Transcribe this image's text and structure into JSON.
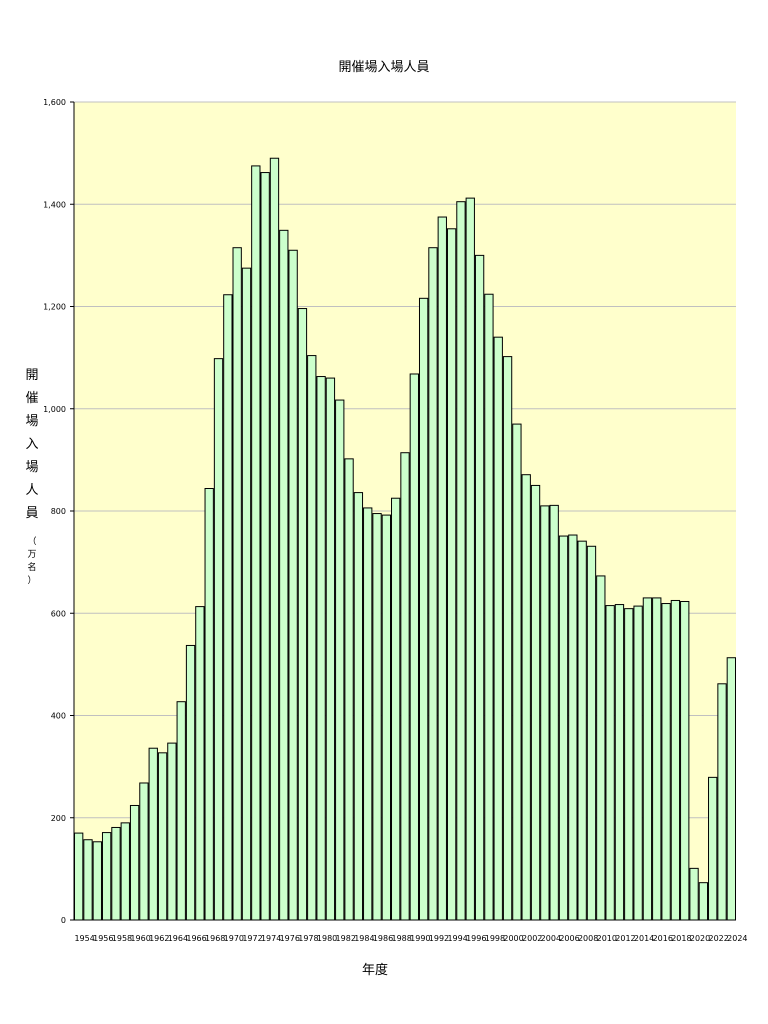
{
  "chart_data": {
    "type": "bar",
    "title": "開催場入場人員",
    "xlabel": "年度",
    "ylabel_main": "開催場入場人員",
    "ylabel_unit": "（万名）",
    "ylim": [
      0,
      1600
    ],
    "yticks": [
      0,
      200,
      400,
      600,
      800,
      1000,
      1200,
      1400,
      1600
    ],
    "ytick_labels": [
      "0",
      "200",
      "400",
      "600",
      "800",
      "1,000",
      "1,200",
      "1,400",
      "1,600"
    ],
    "grid": true,
    "legend": "none",
    "colors": {
      "plot_bg": "#ffffcc",
      "bar_fill": "#ccffcc",
      "bar_stroke": "#000000",
      "grid": "#c0c0c0"
    },
    "categories": [
      1954,
      1955,
      1956,
      1957,
      1958,
      1959,
      1960,
      1961,
      1962,
      1963,
      1964,
      1965,
      1966,
      1967,
      1968,
      1969,
      1970,
      1971,
      1972,
      1973,
      1974,
      1975,
      1976,
      1977,
      1978,
      1979,
      1980,
      1981,
      1982,
      1983,
      1984,
      1985,
      1986,
      1987,
      1988,
      1989,
      1990,
      1991,
      1992,
      1993,
      1994,
      1995,
      1996,
      1997,
      1998,
      1999,
      2000,
      2001,
      2002,
      2003,
      2004,
      2005,
      2006,
      2007,
      2008,
      2009,
      2010,
      2011,
      2012,
      2013,
      2014,
      2015,
      2016,
      2017,
      2018,
      2019,
      2020,
      2021,
      2022,
      2023,
      2024
    ],
    "xtick_labels": [
      "1954",
      "1956",
      "1958",
      "1960",
      "1962",
      "1964",
      "1966",
      "1968",
      "1970",
      "1972",
      "1974",
      "1976",
      "1978",
      "1980",
      "1982",
      "1984",
      "1986",
      "1988",
      "1990",
      "1992",
      "1994",
      "1996",
      "1998",
      "2000",
      "2002",
      "2004",
      "2006",
      "2008",
      "2010",
      "2012",
      "2014",
      "2016",
      "2018",
      "2020",
      "2022",
      "2024"
    ],
    "values": [
      170,
      157,
      153,
      171,
      181,
      190,
      224,
      268,
      336,
      327,
      346,
      427,
      537,
      613,
      844,
      1098,
      1223,
      1315,
      1275,
      1475,
      1462,
      1490,
      1349,
      1310,
      1196,
      1104,
      1063,
      1060,
      1017,
      902,
      836,
      806,
      795,
      792,
      825,
      914,
      1068,
      1216,
      1315,
      1375,
      1352,
      1405,
      1412,
      1300,
      1224,
      1140,
      1102,
      970,
      871,
      850,
      810,
      811,
      751,
      753,
      741,
      731,
      673,
      615,
      617,
      609,
      614,
      630,
      630,
      619,
      625,
      623,
      101,
      73,
      279,
      462,
      513
    ]
  }
}
